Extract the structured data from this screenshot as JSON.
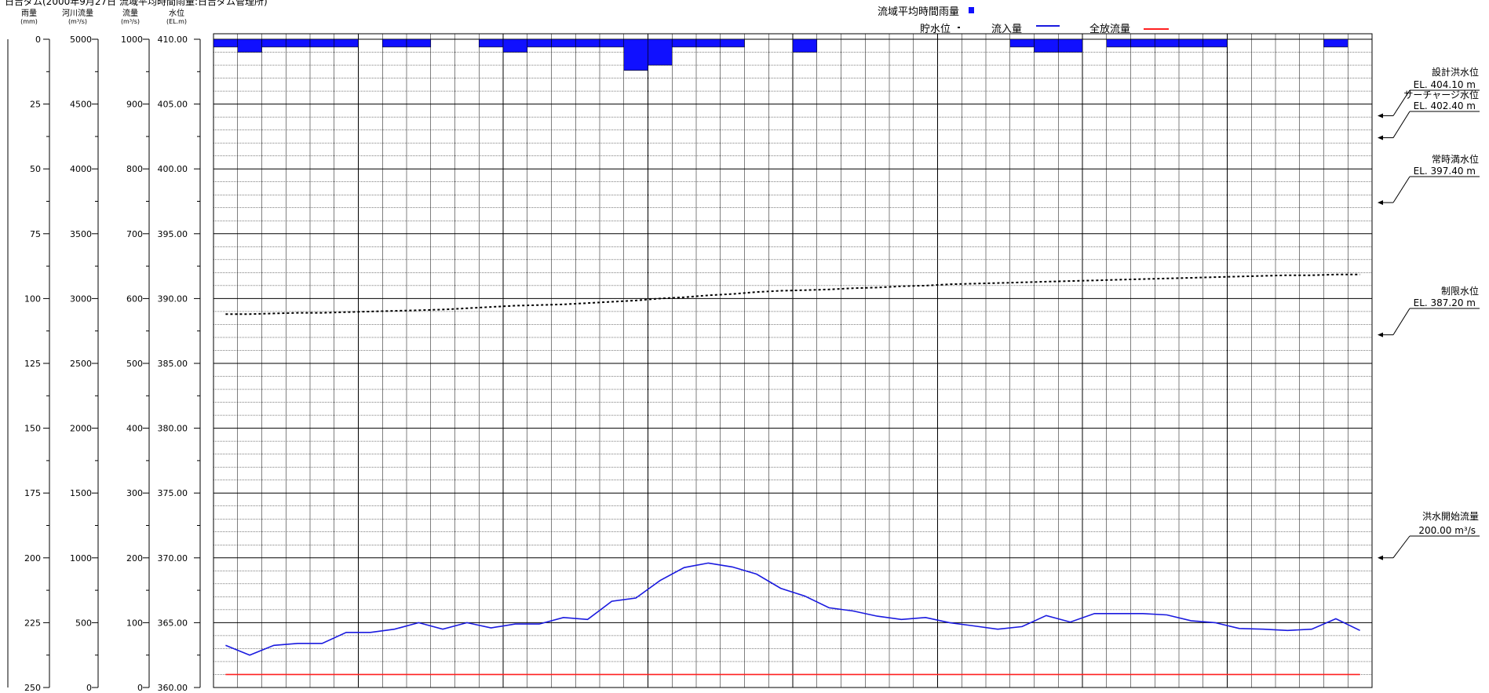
{
  "header_text": "日吉ダム(2000年9月27日 流域平均時間雨量:日吉ダム管理所)",
  "axes": [
    {
      "unit_label": "雨量",
      "unit_sub": "(mm)",
      "ticks": [
        "0",
        "25",
        "50",
        "75",
        "100",
        "125",
        "150",
        "175",
        "200",
        "225",
        "250"
      ]
    },
    {
      "unit_label": "河川流量",
      "unit_sub": "(m³/s)",
      "ticks": [
        "5000",
        "4500",
        "4000",
        "3500",
        "3000",
        "2500",
        "2000",
        "1500",
        "1000",
        "500",
        "0"
      ]
    },
    {
      "unit_label": "流量",
      "unit_sub": "(m³/s)",
      "ticks": [
        "1000",
        "900",
        "800",
        "700",
        "600",
        "500",
        "400",
        "300",
        "200",
        "100",
        "0"
      ]
    },
    {
      "unit_label": "水位",
      "unit_sub": "(EL.m)",
      "ticks": [
        "410.00",
        "405.00",
        "400.00",
        "395.00",
        "390.00",
        "385.00",
        "380.00",
        "375.00",
        "370.00",
        "365.00",
        "360.00"
      ]
    }
  ],
  "legend": {
    "rainfall": "流域平均時間雨量",
    "storage": "貯水位",
    "inflow": "流入量",
    "full_release": "全放流量"
  },
  "colors": {
    "rainfall": "#1010ff",
    "inflow": "#1a1adf",
    "full_release": "#ff2020",
    "storage": "#000000",
    "grid": "#000000"
  },
  "annotations": [
    {
      "title": "設計洪水位",
      "value": "EL.  404.10 m",
      "level": 404.1
    },
    {
      "title": "サーチャージ水位",
      "value": "EL.  402.40 m",
      "level": 402.4
    },
    {
      "title": "常時満水位",
      "value": "EL.  397.40 m",
      "level": 397.4
    },
    {
      "title": "制限水位",
      "value": "EL.  387.20 m",
      "level": 387.2
    },
    {
      "title": "洪水開始流量",
      "value": "200.00 m³/s",
      "level": 200
    }
  ],
  "chart_data": {
    "type": "line",
    "rain_range": [
      0,
      250
    ],
    "flow_range": [
      0,
      1000
    ],
    "level_range": [
      360,
      410
    ],
    "rainfall_mm": [
      3,
      5,
      3,
      3,
      3,
      3,
      0,
      3,
      3,
      0,
      0,
      3,
      5,
      3,
      3,
      3,
      3,
      12,
      10,
      3,
      3,
      3,
      0,
      0,
      5,
      0,
      0,
      0,
      0,
      0,
      0,
      0,
      0,
      3,
      5,
      5,
      0,
      3,
      3,
      3,
      3,
      3,
      0,
      0,
      0,
      0,
      3,
      0
    ],
    "inflow": [
      65,
      50,
      65,
      68,
      68,
      85,
      85,
      90,
      100,
      90,
      100,
      92,
      98,
      98,
      108,
      105,
      133,
      138,
      165,
      185,
      192,
      186,
      175,
      153,
      141,
      123,
      118,
      110,
      105,
      108,
      100,
      95,
      90,
      94,
      111,
      101,
      114,
      114,
      114,
      112,
      103,
      100,
      91,
      90,
      88,
      90,
      106,
      88
    ],
    "full_release": 20,
    "storage_level": [
      388.8,
      388.8,
      388.85,
      388.9,
      388.9,
      388.95,
      389,
      389.05,
      389.1,
      389.15,
      389.25,
      389.35,
      389.45,
      389.5,
      389.55,
      389.65,
      389.75,
      389.85,
      390,
      390.1,
      390.25,
      390.35,
      390.5,
      390.6,
      390.65,
      390.7,
      390.8,
      390.85,
      390.95,
      391,
      391.1,
      391.15,
      391.2,
      391.25,
      391.3,
      391.35,
      391.4,
      391.45,
      391.5,
      391.55,
      391.6,
      391.65,
      391.7,
      391.75,
      391.8,
      391.8,
      391.85,
      391.85
    ]
  }
}
